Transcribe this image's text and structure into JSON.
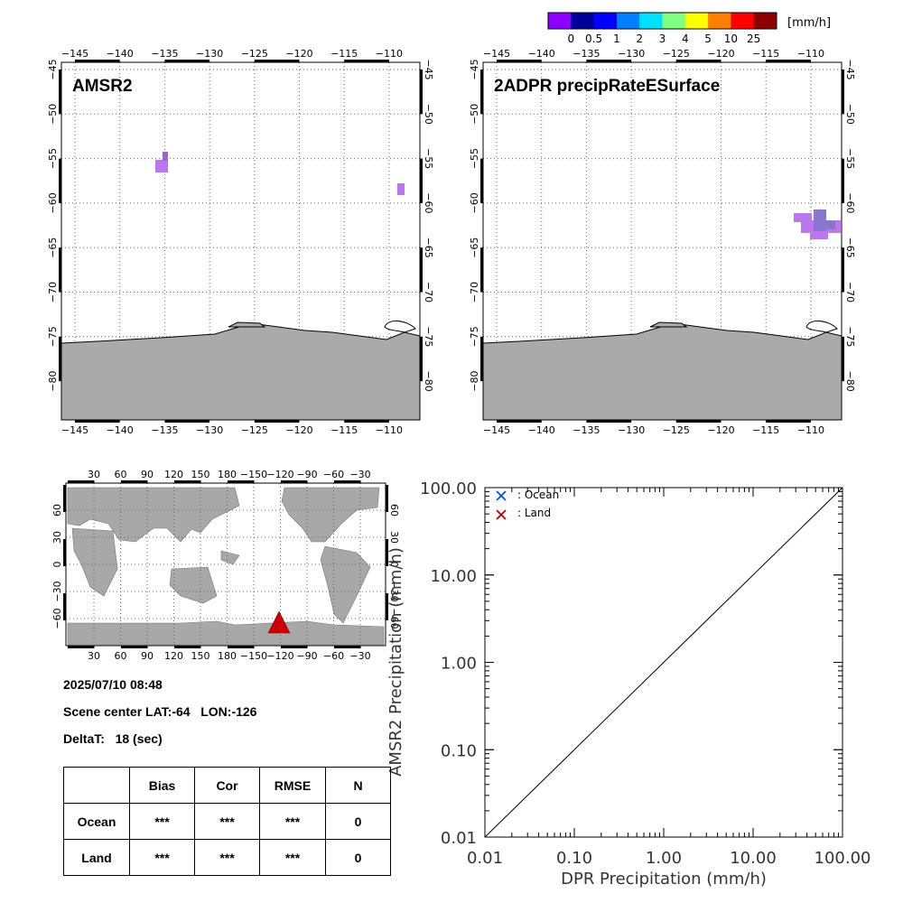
{
  "colorbar": {
    "unit": "[mm/h]",
    "colors": [
      "#8b00ff",
      "#000099",
      "#0000ff",
      "#0080ff",
      "#00e0ff",
      "#80ff80",
      "#ffff00",
      "#ff8000",
      "#ff0000",
      "#8b0000"
    ],
    "labels": [
      "0",
      "0.5",
      "1",
      "2",
      "3",
      "4",
      "5",
      "10",
      "25"
    ]
  },
  "maps": [
    {
      "title": "AMSR2",
      "lon_labels": [
        "−145",
        "−140",
        "−135",
        "−130",
        "−125",
        "−120",
        "−115",
        "−110"
      ],
      "lat_labels": [
        "−45",
        "−50",
        "−55",
        "−60",
        "−65",
        "−70",
        "−75",
        "−80"
      ]
    },
    {
      "title": "2ADPR precipRateESurface",
      "lon_labels": [
        "−145",
        "−140",
        "−135",
        "−130",
        "−125",
        "−120",
        "−115",
        "−110"
      ],
      "lat_labels": [
        "−45",
        "−50",
        "−55",
        "−60",
        "−65",
        "−70",
        "−75",
        "−80"
      ]
    }
  ],
  "globe": {
    "top_lon_labels": [
      "30",
      "60",
      "90",
      "120",
      "150",
      "180",
      "−150",
      "−120",
      "−90",
      "−60",
      "−30"
    ],
    "bottom_lon_labels": [
      "30",
      "60",
      "90",
      "120",
      "150",
      "180",
      "−150",
      "−120",
      "−90",
      "−60",
      "−30"
    ],
    "lat_labels": [
      "60",
      "30",
      "0",
      "−30",
      "−60"
    ],
    "marker_color": "#cc0000"
  },
  "info": {
    "datetime": "2025/07/10 08:48",
    "scene_center": "Scene center LAT:-64   LON:-126",
    "deltat": "DeltaT:   18 (sec)"
  },
  "stats_table": {
    "headers": [
      "",
      "Bias",
      "Cor",
      "RMSE",
      "N"
    ],
    "rows": [
      [
        "Ocean",
        "***",
        "***",
        "***",
        "0"
      ],
      [
        "Land",
        "***",
        "***",
        "***",
        "0"
      ]
    ]
  },
  "chart_data": {
    "type": "scatter",
    "xlabel": "DPR Precipitation (mm/h)",
    "ylabel": "AMSR2 Precipitation (mm/h)",
    "xlim": [
      0.01,
      100
    ],
    "ylim": [
      0.01,
      100
    ],
    "log_scale": true,
    "x_tick_labels": [
      "0.01",
      "0.10",
      "1.00",
      "10.00",
      "100.00"
    ],
    "y_tick_labels": [
      "0.01",
      "0.10",
      "1.00",
      "10.00",
      "100.00"
    ],
    "legend": [
      {
        "name": ": Ocean",
        "color": "#0055dd"
      },
      {
        "name": ": Land",
        "color": "#bb0000"
      }
    ],
    "series": [
      {
        "name": ": Ocean",
        "points": []
      },
      {
        "name": ": Land",
        "points": []
      }
    ],
    "reference_line": "y = x"
  }
}
